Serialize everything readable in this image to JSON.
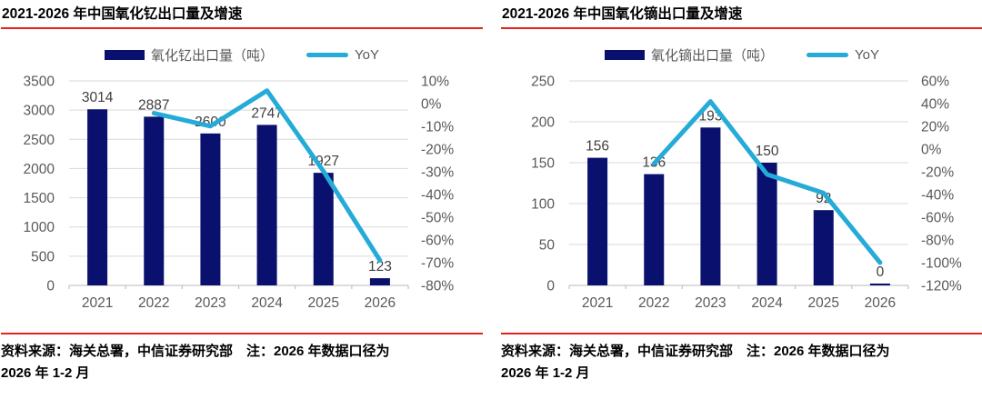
{
  "colors": {
    "bar": "#0A106E",
    "line": "#25ABD8",
    "accent_rule": "#E3231E",
    "grid": "#D9D9D9",
    "axis_line": "#C6C6C6",
    "axis_text": "#595959",
    "value_label_text": "#404040"
  },
  "chart_data": [
    {
      "type": "bar+line combo",
      "title": "2021-2026 年中国氧化钇出口量及增速",
      "categories": [
        "2021",
        "2022",
        "2023",
        "2024",
        "2025",
        "2026"
      ],
      "series": [
        {
          "name": "氧化钇出口量（吨）",
          "type": "bar",
          "axis": "left",
          "values": [
            3014,
            2887,
            2600,
            2747,
            1927,
            123
          ]
        },
        {
          "name": "YoY",
          "type": "line",
          "axis": "right",
          "values": [
            null,
            -4.2,
            -9.9,
            5.7,
            -29.8,
            -69
          ]
        }
      ],
      "bar_value_labels": [
        "3014",
        "2887",
        "2600",
        "2747",
        "1927",
        "123"
      ],
      "left_axis": {
        "min": 0,
        "max": 3500,
        "ticks": [
          "3500",
          "3000",
          "2500",
          "2000",
          "1500",
          "1000",
          "500",
          "0"
        ]
      },
      "right_axis": {
        "min": -80,
        "max": 10,
        "ticks": [
          "10%",
          "0%",
          "-10%",
          "-20%",
          "-30%",
          "-40%",
          "-50%",
          "-60%",
          "-70%",
          "-80%"
        ]
      },
      "grid": true,
      "legend_position": "top",
      "source_line1": "资料来源：海关总署，中信证券研究部　注：2026 年数据口径为",
      "source_line2": "2026 年 1-2 月"
    },
    {
      "type": "bar+line combo",
      "title": "2021-2026 年中国氧化镝出口量及增速",
      "categories": [
        "2021",
        "2022",
        "2023",
        "2024",
        "2025",
        "2026"
      ],
      "series": [
        {
          "name": "氧化镝出口量（吨）",
          "type": "bar",
          "axis": "left",
          "values": [
            156,
            136,
            193,
            150,
            92,
            0
          ]
        },
        {
          "name": "YoY",
          "type": "line",
          "axis": "right",
          "values": [
            null,
            -12.8,
            41.9,
            -22.3,
            -38.7,
            -100
          ]
        }
      ],
      "bar_value_labels": [
        "156",
        "136",
        "193",
        "150",
        "92",
        "0"
      ],
      "left_axis": {
        "min": 0,
        "max": 250,
        "ticks": [
          "250",
          "200",
          "150",
          "100",
          "50",
          "0"
        ]
      },
      "right_axis": {
        "min": -120,
        "max": 60,
        "ticks": [
          "60%",
          "40%",
          "20%",
          "0%",
          "-20%",
          "-40%",
          "-60%",
          "-80%",
          "-100%",
          "-120%"
        ]
      },
      "grid": true,
      "legend_position": "top",
      "source_line1": "资料来源：海关总署，中信证券研究部　注：2026 年数据口径为",
      "source_line2": "2026 年 1-2 月"
    }
  ]
}
